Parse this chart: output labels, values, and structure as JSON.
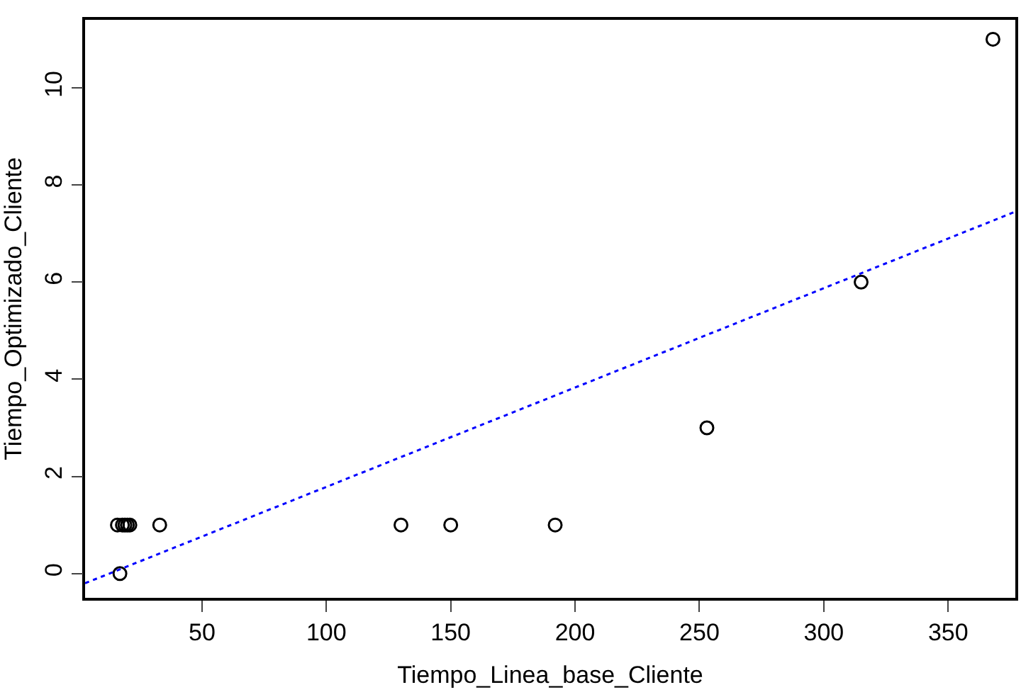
{
  "chart_data": {
    "type": "scatter",
    "xlabel": "Tiempo_Linea_base_Cliente",
    "ylabel": "Tiempo_Optimizado_Cliente",
    "xlim": [
      3,
      377
    ],
    "ylim": [
      -0.5,
      11.4
    ],
    "xticks": [
      50,
      100,
      150,
      200,
      250,
      300,
      350
    ],
    "yticks": [
      0,
      2,
      4,
      6,
      8,
      10
    ],
    "series": [
      {
        "color": "#000000",
        "marker": "circle",
        "x": [
          17,
          16,
          18,
          19,
          20,
          21,
          33,
          130,
          150,
          192,
          253,
          315,
          368
        ],
        "values": [
          0,
          1,
          1,
          1,
          1,
          1,
          1,
          1,
          1,
          1,
          3,
          6,
          11
        ]
      },
      {
        "type": "line",
        "color": "#0000ff",
        "line_style": "dotted",
        "x": [
          3,
          377
        ],
        "values": [
          -0.2,
          7.45
        ]
      }
    ]
  }
}
